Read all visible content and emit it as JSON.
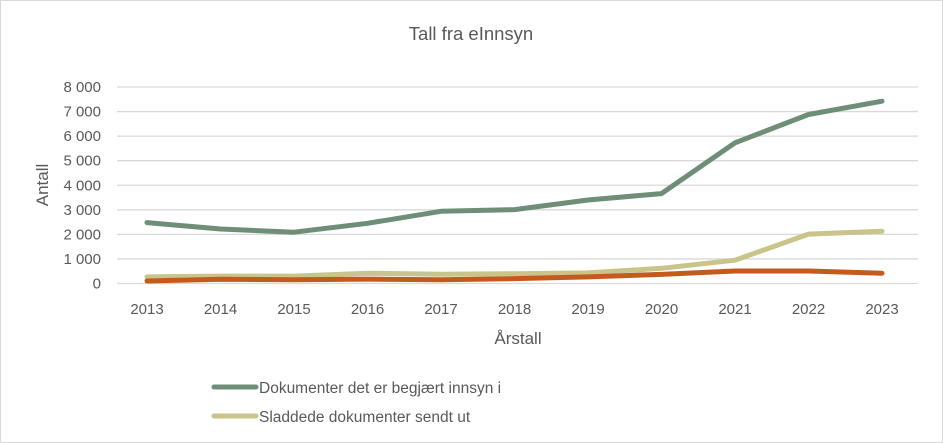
{
  "chart_data": {
    "type": "line",
    "title": "Tall fra eInnsyn",
    "xlabel": "Årstall",
    "ylabel": "Antall",
    "categories": [
      "2013",
      "2014",
      "2015",
      "2016",
      "2017",
      "2018",
      "2019",
      "2020",
      "2021",
      "2022",
      "2023"
    ],
    "y_ticks": [
      "0",
      "1 000",
      "2 000",
      "3 000",
      "4 000",
      "5 000",
      "6 000",
      "7 000",
      "8 000"
    ],
    "ylim": [
      0,
      8000
    ],
    "grid": true,
    "legend_position": "bottom",
    "series": [
      {
        "name": "Dokumenter det er begjært innsyn i",
        "color": "#6E8E78",
        "values": [
          2480,
          2220,
          2090,
          2450,
          2940,
          3010,
          3400,
          3660,
          5730,
          6880,
          7420
        ]
      },
      {
        "name": "Sladdede dokumenter sendt ut",
        "color": "#C8C48A",
        "values": [
          270,
          300,
          300,
          420,
          380,
          400,
          430,
          620,
          950,
          2010,
          2130
        ]
      },
      {
        "name": "",
        "color": "#C55A1E",
        "values": [
          100,
          170,
          150,
          180,
          150,
          200,
          270,
          370,
          510,
          510,
          420
        ]
      }
    ]
  }
}
